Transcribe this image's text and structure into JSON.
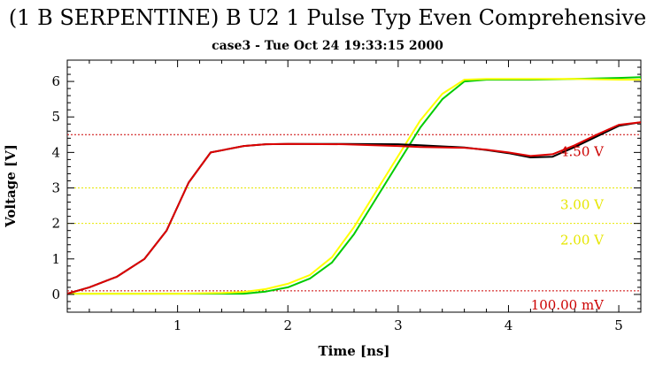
{
  "chart_data": {
    "type": "line",
    "title": "(1 B SERPENTINE) B U2 1 Pulse Typ Even Comprehensive",
    "subtitle": "case3 - Tue Oct 24 19:33:15 2000",
    "xlabel": "Time [ns]",
    "ylabel": "Voltage [V]",
    "xlim": [
      0,
      5.2
    ],
    "ylim": [
      -0.5,
      6.6
    ],
    "xticks": [
      1,
      2,
      3,
      4,
      5
    ],
    "yticks": [
      0,
      1,
      2,
      3,
      4,
      5,
      6
    ],
    "reference_lines": [
      {
        "value": 4.5,
        "label": "4.50 V",
        "color": "#cc0000"
      },
      {
        "value": 3.0,
        "label": "3.00 V",
        "color": "#e6e600"
      },
      {
        "value": 2.0,
        "label": "2.00 V",
        "color": "#e6e600"
      },
      {
        "value": 0.1,
        "label": "100.00 mV",
        "color": "#cc0000"
      }
    ],
    "series": [
      {
        "color": "#00cc00",
        "x": [
          0,
          1.0,
          1.6,
          1.8,
          2.0,
          2.2,
          2.4,
          2.6,
          2.8,
          3.0,
          3.2,
          3.4,
          3.6,
          3.8,
          4.2,
          4.6,
          5.0,
          5.2
        ],
        "y": [
          0.02,
          0.02,
          0.02,
          0.08,
          0.2,
          0.45,
          0.9,
          1.7,
          2.7,
          3.7,
          4.7,
          5.5,
          6.0,
          6.05,
          6.05,
          6.07,
          6.1,
          6.12
        ]
      },
      {
        "color": "#ffff00",
        "x": [
          0,
          1.0,
          1.4,
          1.6,
          1.8,
          2.0,
          2.2,
          2.4,
          2.6,
          2.8,
          3.0,
          3.2,
          3.4,
          3.6,
          3.8,
          4.2,
          4.6,
          5.0,
          5.2
        ],
        "y": [
          0.02,
          0.02,
          0.04,
          0.07,
          0.15,
          0.3,
          0.55,
          1.05,
          1.9,
          2.9,
          3.9,
          4.9,
          5.65,
          6.05,
          6.07,
          6.07,
          6.07,
          6.05,
          6.05
        ]
      },
      {
        "color": "#000000",
        "x": [
          0,
          0.2,
          0.45,
          0.7,
          0.9,
          1.1,
          1.3,
          1.6,
          1.8,
          2.0,
          2.5,
          3.0,
          3.2,
          3.6,
          3.8,
          4.0,
          4.2,
          4.4,
          4.6,
          4.8,
          5.0,
          5.2
        ],
        "y": [
          0.02,
          0.2,
          0.5,
          1.0,
          1.8,
          3.15,
          4.0,
          4.18,
          4.23,
          4.24,
          4.24,
          4.23,
          4.2,
          4.14,
          4.07,
          3.98,
          3.86,
          3.88,
          4.15,
          4.45,
          4.75,
          4.85
        ]
      },
      {
        "color": "#dd0000",
        "x": [
          0,
          0.2,
          0.45,
          0.7,
          0.9,
          1.1,
          1.3,
          1.6,
          1.8,
          2.0,
          2.5,
          3.0,
          3.2,
          3.6,
          3.8,
          4.0,
          4.2,
          4.4,
          4.6,
          4.8,
          5.0,
          5.2
        ],
        "y": [
          0.02,
          0.2,
          0.5,
          1.0,
          1.8,
          3.15,
          4.0,
          4.18,
          4.23,
          4.24,
          4.23,
          4.18,
          4.15,
          4.13,
          4.08,
          4.0,
          3.9,
          3.95,
          4.2,
          4.5,
          4.78,
          4.85
        ]
      }
    ]
  }
}
